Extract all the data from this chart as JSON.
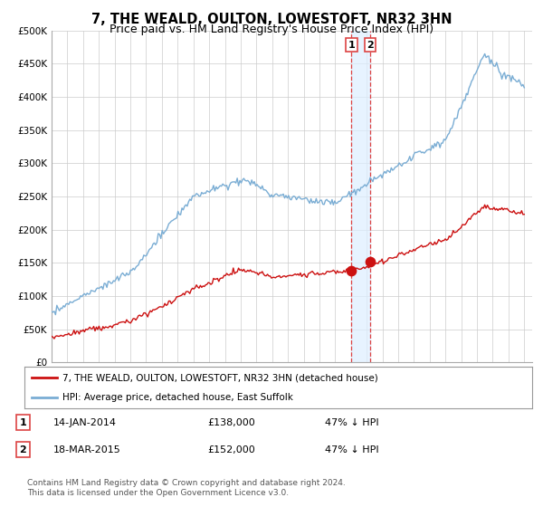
{
  "title": "7, THE WEALD, OULTON, LOWESTOFT, NR32 3HN",
  "subtitle": "Price paid vs. HM Land Registry's House Price Index (HPI)",
  "ylim": [
    0,
    500000
  ],
  "yticks": [
    0,
    50000,
    100000,
    150000,
    200000,
    250000,
    300000,
    350000,
    400000,
    450000,
    500000
  ],
  "ytick_labels": [
    "£0",
    "£50K",
    "£100K",
    "£150K",
    "£200K",
    "£250K",
    "£300K",
    "£350K",
    "£400K",
    "£450K",
    "£500K"
  ],
  "xlim_start": 1995.0,
  "xlim_end": 2025.5,
  "hpi_color": "#7aadd4",
  "price_color": "#cc1111",
  "vline_color": "#dd4444",
  "shade_color": "#ddeeff",
  "transaction1_x": 2014.04,
  "transaction1_y": 138000,
  "transaction2_x": 2015.21,
  "transaction2_y": 152000,
  "legend_label1": "7, THE WEALD, OULTON, LOWESTOFT, NR32 3HN (detached house)",
  "legend_label2": "HPI: Average price, detached house, East Suffolk",
  "annotation1_num": "1",
  "annotation2_num": "2",
  "footer": "Contains HM Land Registry data © Crown copyright and database right 2024.\nThis data is licensed under the Open Government Licence v3.0.",
  "title_fontsize": 10.5,
  "subtitle_fontsize": 9,
  "tick_fontsize": 7.5,
  "background_color": "#ffffff",
  "grid_color": "#cccccc"
}
